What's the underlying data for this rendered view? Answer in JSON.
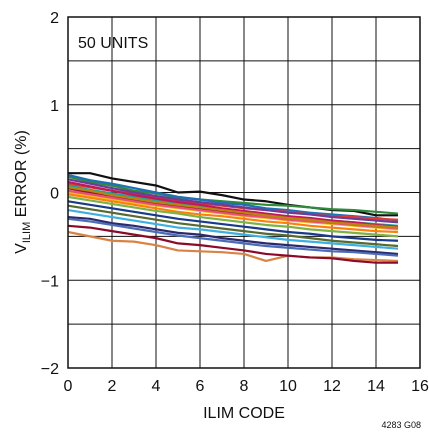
{
  "chart_data": {
    "type": "line",
    "title": "",
    "xlabel": "ILIM CODE",
    "ylabel_main": "V",
    "ylabel_sub": "ILIM",
    "ylabel_rest": " ERROR (%)",
    "xlim": [
      0,
      16
    ],
    "ylim": [
      -2,
      2
    ],
    "grid": true,
    "x_ticks": [
      "0",
      "2",
      "4",
      "6",
      "8",
      "10",
      "12",
      "14",
      "16"
    ],
    "y_ticks": [
      "2",
      "1",
      "0",
      "−1",
      "−2"
    ],
    "annotation": "50 UNITS",
    "footnote": "4283 G08",
    "x": [
      0,
      1,
      2,
      3,
      4,
      5,
      6,
      7,
      8,
      9,
      10,
      11,
      12,
      13,
      14,
      15
    ],
    "series": [
      {
        "color": "#111111",
        "values": [
          0.22,
          0.22,
          0.16,
          0.12,
          0.08,
          0.0,
          0.01,
          -0.03,
          -0.08,
          -0.1,
          -0.14,
          -0.17,
          -0.2,
          -0.21,
          -0.26,
          -0.26
        ]
      },
      {
        "color": "#2e8b3a",
        "values": [
          0.18,
          0.12,
          0.08,
          0.02,
          -0.01,
          -0.06,
          -0.08,
          -0.1,
          -0.12,
          -0.14,
          -0.15,
          -0.17,
          -0.19,
          -0.2,
          -0.22,
          -0.24
        ]
      },
      {
        "color": "#1f6fb5",
        "values": [
          0.2,
          0.14,
          0.1,
          0.05,
          0.0,
          -0.05,
          -0.08,
          -0.12,
          -0.14,
          -0.18,
          -0.2,
          -0.23,
          -0.25,
          -0.27,
          -0.29,
          -0.32
        ]
      },
      {
        "color": "#e23b2e",
        "values": [
          0.1,
          0.06,
          0.02,
          -0.02,
          -0.06,
          -0.1,
          -0.12,
          -0.15,
          -0.18,
          -0.2,
          -0.22,
          -0.25,
          -0.27,
          -0.28,
          -0.3,
          -0.31
        ]
      },
      {
        "color": "#8b1538",
        "values": [
          0.05,
          0.0,
          -0.04,
          -0.08,
          -0.12,
          -0.15,
          -0.18,
          -0.22,
          -0.25,
          -0.28,
          -0.3,
          -0.32,
          -0.35,
          -0.36,
          -0.38,
          -0.4
        ]
      },
      {
        "color": "#f2c21c",
        "values": [
          0.0,
          -0.04,
          -0.08,
          -0.12,
          -0.15,
          -0.18,
          -0.21,
          -0.24,
          -0.27,
          -0.29,
          -0.32,
          -0.34,
          -0.36,
          -0.38,
          -0.4,
          -0.42
        ]
      },
      {
        "color": "#6a3d9a",
        "values": [
          0.15,
          0.1,
          0.05,
          0.0,
          -0.04,
          -0.08,
          -0.11,
          -0.14,
          -0.17,
          -0.2,
          -0.23,
          -0.25,
          -0.28,
          -0.3,
          -0.32,
          -0.34
        ]
      },
      {
        "color": "#20a39e",
        "values": [
          0.08,
          0.03,
          -0.01,
          -0.05,
          -0.09,
          -0.12,
          -0.16,
          -0.19,
          -0.22,
          -0.25,
          -0.27,
          -0.3,
          -0.32,
          -0.34,
          -0.36,
          -0.38
        ]
      },
      {
        "color": "#ff7f0e",
        "values": [
          -0.02,
          -0.06,
          -0.1,
          -0.14,
          -0.18,
          -0.22,
          -0.25,
          -0.27,
          -0.3,
          -0.33,
          -0.35,
          -0.38,
          -0.4,
          -0.42,
          -0.44,
          -0.45
        ]
      },
      {
        "color": "#1a3a8a",
        "values": [
          -0.1,
          -0.14,
          -0.18,
          -0.22,
          -0.26,
          -0.3,
          -0.33,
          -0.36,
          -0.39,
          -0.42,
          -0.45,
          -0.47,
          -0.5,
          -0.52,
          -0.54,
          -0.55
        ]
      },
      {
        "color": "#c2185b",
        "values": [
          0.12,
          0.07,
          0.02,
          -0.03,
          -0.07,
          -0.11,
          -0.14,
          -0.18,
          -0.21,
          -0.24,
          -0.27,
          -0.29,
          -0.32,
          -0.34,
          -0.37,
          -0.39
        ]
      },
      {
        "color": "#7cb342",
        "values": [
          -0.05,
          -0.09,
          -0.13,
          -0.17,
          -0.21,
          -0.24,
          -0.28,
          -0.31,
          -0.34,
          -0.37,
          -0.39,
          -0.42,
          -0.44,
          -0.46,
          -0.48,
          -0.5
        ]
      },
      {
        "color": "#d98244",
        "values": [
          -0.45,
          -0.5,
          -0.55,
          -0.56,
          -0.6,
          -0.66,
          -0.67,
          -0.68,
          -0.7,
          -0.78,
          -0.72,
          -0.74,
          -0.74,
          -0.76,
          -0.77,
          -0.78
        ]
      },
      {
        "color": "#8b0a2a",
        "values": [
          -0.38,
          -0.4,
          -0.44,
          -0.48,
          -0.52,
          -0.58,
          -0.6,
          -0.63,
          -0.66,
          -0.7,
          -0.72,
          -0.74,
          -0.75,
          -0.78,
          -0.8,
          -0.8
        ]
      },
      {
        "color": "#2a2a6e",
        "values": [
          -0.28,
          -0.3,
          -0.35,
          -0.38,
          -0.42,
          -0.46,
          -0.48,
          -0.52,
          -0.55,
          -0.58,
          -0.6,
          -0.62,
          -0.64,
          -0.66,
          -0.68,
          -0.7
        ]
      },
      {
        "color": "#3cb0e0",
        "values": [
          -0.2,
          -0.24,
          -0.28,
          -0.32,
          -0.36,
          -0.4,
          -0.42,
          -0.45,
          -0.48,
          -0.51,
          -0.54,
          -0.56,
          -0.58,
          -0.6,
          -0.62,
          -0.64
        ]
      },
      {
        "color": "#556b2f",
        "values": [
          -0.15,
          -0.19,
          -0.23,
          -0.27,
          -0.31,
          -0.35,
          -0.38,
          -0.41,
          -0.44,
          -0.47,
          -0.49,
          -0.52,
          -0.55,
          -0.57,
          -0.59,
          -0.61
        ]
      },
      {
        "color": "#e94e77",
        "values": [
          0.02,
          -0.02,
          -0.06,
          -0.1,
          -0.14,
          -0.17,
          -0.2,
          -0.23,
          -0.26,
          -0.28,
          -0.31,
          -0.33,
          -0.35,
          -0.37,
          -0.39,
          -0.41
        ]
      },
      {
        "color": "#4b6cb7",
        "values": [
          -0.3,
          -0.33,
          -0.37,
          -0.41,
          -0.45,
          -0.49,
          -0.52,
          -0.55,
          -0.58,
          -0.61,
          -0.63,
          -0.65,
          -0.67,
          -0.68,
          -0.7,
          -0.72
        ]
      },
      {
        "color": "#b8860b",
        "values": [
          0.06,
          0.02,
          -0.03,
          -0.07,
          -0.11,
          -0.14,
          -0.17,
          -0.2,
          -0.23,
          -0.26,
          -0.29,
          -0.31,
          -0.34,
          -0.36,
          -0.38,
          -0.4
        ]
      }
    ]
  }
}
